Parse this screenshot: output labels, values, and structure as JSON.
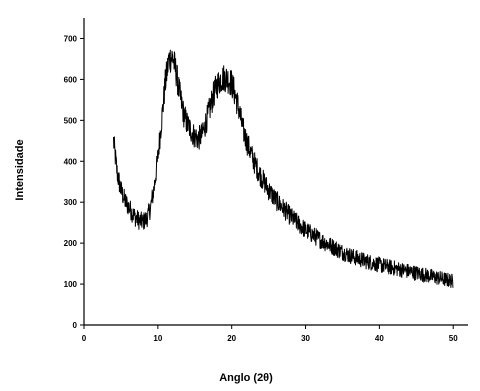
{
  "chart_data": {
    "type": "line",
    "title": "",
    "xlabel": "Anglo (2θ)",
    "ylabel": "Intensidade",
    "xlim": [
      0,
      52
    ],
    "ylim": [
      0,
      750
    ],
    "grid": false,
    "legend": "none",
    "line_color": "#000000",
    "x_ticks": [
      0,
      10,
      20,
      30,
      40,
      50
    ],
    "x_tick_labels": [
      "0",
      "10",
      "20",
      "30",
      "40",
      "50"
    ],
    "y_ticks": [
      0,
      100,
      200,
      300,
      400,
      500,
      600,
      700
    ],
    "y_tick_labels": [
      "0",
      "100",
      "200",
      "300",
      "400",
      "500",
      "600",
      "700"
    ],
    "series": [
      {
        "x": [
          4,
          4.5,
          5,
          5.5,
          6,
          6.5,
          7,
          7.5,
          8,
          8.5,
          9,
          9.5,
          10,
          10.5,
          11,
          11.5,
          12,
          12.5,
          13,
          13.5,
          14,
          14.5,
          15,
          15.5,
          16,
          16.5,
          17,
          17.5,
          18,
          18.5,
          19,
          19.5,
          20,
          20.5,
          21,
          21.5,
          22,
          22.5,
          23,
          23.5,
          24,
          25,
          26,
          27,
          28,
          29,
          30,
          31,
          32,
          33,
          34,
          35,
          36,
          37,
          38,
          39,
          40,
          41,
          42,
          43,
          44,
          45,
          46,
          47,
          48,
          49,
          50
        ],
        "y": [
          450,
          370,
          330,
          305,
          290,
          275,
          262,
          255,
          252,
          260,
          285,
          335,
          410,
          500,
          590,
          650,
          655,
          615,
          560,
          515,
          490,
          475,
          460,
          455,
          465,
          495,
          525,
          560,
          585,
          600,
          605,
          600,
          590,
          560,
          525,
          480,
          450,
          425,
          400,
          380,
          362,
          330,
          305,
          285,
          265,
          248,
          232,
          220,
          208,
          198,
          188,
          178,
          170,
          163,
          157,
          152,
          147,
          143,
          139,
          135,
          131,
          127,
          123,
          119,
          115,
          111,
          107
        ]
      }
    ]
  }
}
